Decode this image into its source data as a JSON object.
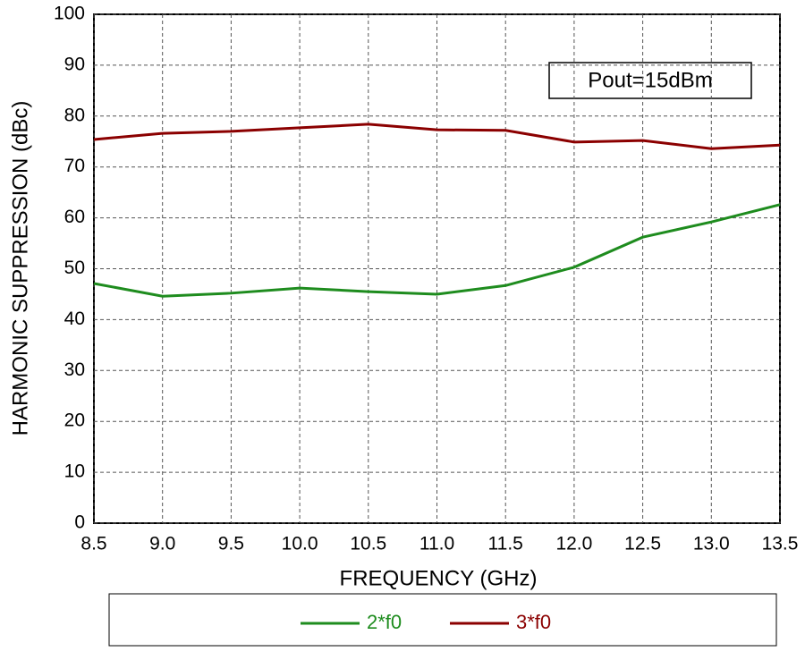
{
  "chart_data": {
    "type": "line",
    "xlabel": "FREQUENCY (GHz)",
    "ylabel": "HARMONIC SUPPRESSION (dBc)",
    "annotation": "Pout=15dBm",
    "x": [
      8.5,
      9.0,
      9.5,
      10.0,
      10.5,
      11.0,
      11.5,
      12.0,
      12.5,
      13.0,
      13.5
    ],
    "series": [
      {
        "name": "2*f0",
        "color": "#1e8c1e",
        "values": [
          47.1,
          44.6,
          45.2,
          46.2,
          45.5,
          45.0,
          46.7,
          50.3,
          56.2,
          59.2,
          62.6
        ]
      },
      {
        "name": "3*f0",
        "color": "#8b0000",
        "values": [
          75.4,
          76.6,
          77.0,
          77.7,
          78.4,
          77.3,
          77.2,
          74.9,
          75.2,
          73.6,
          74.3
        ]
      }
    ],
    "xlim": [
      8.5,
      13.5
    ],
    "xticks": [
      8.5,
      {
        "value": 9,
        "label": "9.0"
      },
      9.5,
      {
        "value": 10,
        "label": "10.0"
      },
      10.5,
      {
        "value": 11,
        "label": "11.0"
      },
      11.5,
      {
        "value": 12,
        "label": "12.0"
      },
      12.5,
      {
        "value": 13,
        "label": "13.0"
      },
      13.5
    ],
    "ylim": [
      0,
      100
    ],
    "yticks": [
      0,
      10,
      20,
      30,
      40,
      50,
      60,
      70,
      80,
      90,
      100
    ],
    "grid": true
  }
}
